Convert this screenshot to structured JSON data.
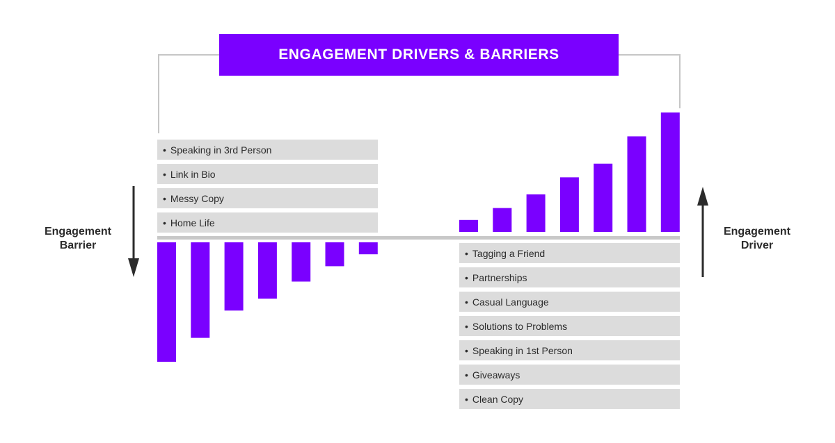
{
  "title": "ENGAGEMENT DRIVERS & BARRIERS",
  "left_side_label": [
    "Engagement",
    "Barrier"
  ],
  "right_side_label": [
    "Engagement",
    "Driver"
  ],
  "barriers": [
    "Speaking in 3rd Person",
    "Link in Bio",
    "Messy Copy",
    "Home Life"
  ],
  "drivers": [
    "Tagging a Friend",
    "Partnerships",
    "Casual Language",
    "Solutions to Problems",
    "Speaking in 1st Person",
    "Giveaways",
    "Clean Copy"
  ],
  "colors": {
    "accent": "#7a00ff",
    "label_bg": "#dcdcdc",
    "axis": "#c8c8c8",
    "arrow": "#2b2b2b"
  },
  "chart_data": [
    {
      "type": "bar",
      "title": "",
      "values": [
        -7,
        -5.6,
        -4,
        -3.3,
        -2.3,
        -1.4,
        -0.7
      ],
      "ylim": [
        -7,
        0
      ],
      "grid": false
    },
    {
      "type": "bar",
      "title": "",
      "values": [
        0.7,
        1.4,
        2.2,
        3.2,
        4.0,
        5.6,
        7
      ],
      "ylim": [
        0,
        7
      ],
      "grid": false
    }
  ]
}
